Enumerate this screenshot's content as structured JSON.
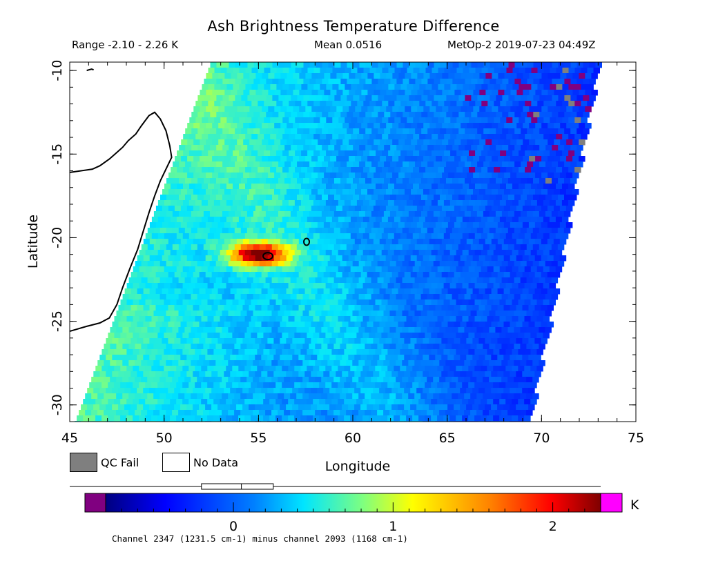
{
  "header": {
    "title": "Ash Brightness Temperature Difference",
    "range": "Range -2.10 - 2.26 K",
    "mean": "Mean 0.0516",
    "satellite": "MetOp-2 2019-07-23 04:49Z"
  },
  "legend": {
    "qc_fail": "QC Fail",
    "no_data": "No Data",
    "qc_fail_color": "#7f7f7f",
    "no_data_color": "#ffffff"
  },
  "colorbar": {
    "unit": "K",
    "ticks": [
      "0",
      "1",
      "2"
    ],
    "low_color": "#800080",
    "high_color": "#ff00ff",
    "note": "Channel 2347 (1231.5 cm-1) minus channel 2093 (1168 cm-1)"
  },
  "chart_data": {
    "type": "heatmap",
    "title": "Ash Brightness Temperature Difference",
    "xlabel": "Longitude",
    "ylabel": "Latitude",
    "xlim": [
      45,
      75
    ],
    "ylim": [
      -31,
      -9.5
    ],
    "xticks": [
      "45",
      "50",
      "55",
      "60",
      "65",
      "70",
      "75"
    ],
    "yticks": [
      "-10",
      "-15",
      "-20",
      "-25",
      "-30"
    ],
    "value_range": [
      -2.1,
      2.26
    ],
    "colorbar_range": [
      -0.8,
      2.3
    ],
    "units": "K",
    "swath": {
      "lat_top": -9.5,
      "lat_bottom": -31,
      "left_lon_top": 52.5,
      "left_lon_bottom": 45.3,
      "right_lon_top": 73.0,
      "right_lon_bottom": 69.3
    },
    "hotspot": {
      "lon": 55.0,
      "lat": -21.0,
      "value": 2.2
    }
  }
}
